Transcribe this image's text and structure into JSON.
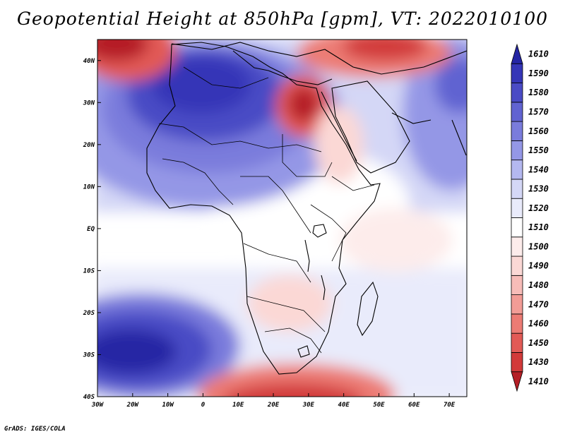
{
  "chart_data": {
    "type": "filled-contour-map",
    "title": "Geopotential Height at 850hPa [gpm], VT: 2022010100",
    "variable": "Geopotential Height",
    "level": "850hPa",
    "units": "gpm",
    "valid_time": "2022010100",
    "lon_range": [
      -30,
      75
    ],
    "lat_range": [
      -40,
      45
    ],
    "lon_tick_labels": [
      "30W",
      "20W",
      "10W",
      "0",
      "10E",
      "20E",
      "30E",
      "40E",
      "50E",
      "60E",
      "70E"
    ],
    "lat_tick_labels": [
      "40S",
      "30S",
      "20S",
      "10S",
      "EQ",
      "10N",
      "20N",
      "30N",
      "40N"
    ],
    "colorbar_levels": [
      "1410",
      "1430",
      "1450",
      "1460",
      "1470",
      "1480",
      "1490",
      "1500",
      "1510",
      "1520",
      "1530",
      "1540",
      "1550",
      "1560",
      "1570",
      "1580",
      "1590",
      "1610"
    ],
    "colorbar_colors": [
      "#b51f26",
      "#d23a3a",
      "#e25a56",
      "#ec7b74",
      "#f29c96",
      "#f7bcb8",
      "#fbd8d5",
      "#fdeceb",
      "#ffffff",
      "#e9ebfb",
      "#d4d7f6",
      "#b4b8f0",
      "#9497e6",
      "#7a7cdc",
      "#6163d1",
      "#4a4bc5",
      "#3536b7",
      "#2526a4"
    ],
    "features": [
      {
        "label": "high over Sahara / Northwest Africa",
        "lon": -8,
        "lat": 28,
        "value": 1590
      },
      {
        "label": "high over South Atlantic",
        "lon": -20,
        "lat": -30,
        "value": 1590
      },
      {
        "label": "low over Egypt",
        "lon": 31,
        "lat": 29,
        "value": 1440
      },
      {
        "label": "low over northeast Atlantic",
        "lon": -25,
        "lat": 43,
        "value": 1450
      },
      {
        "label": "low over Black Sea / Caspian",
        "lon": 45,
        "lat": 43,
        "value": 1460
      },
      {
        "label": "low south of South Africa",
        "lon": 22,
        "lat": -40,
        "value": 1450
      }
    ]
  },
  "footer": "GrADS: IGES/COLA"
}
